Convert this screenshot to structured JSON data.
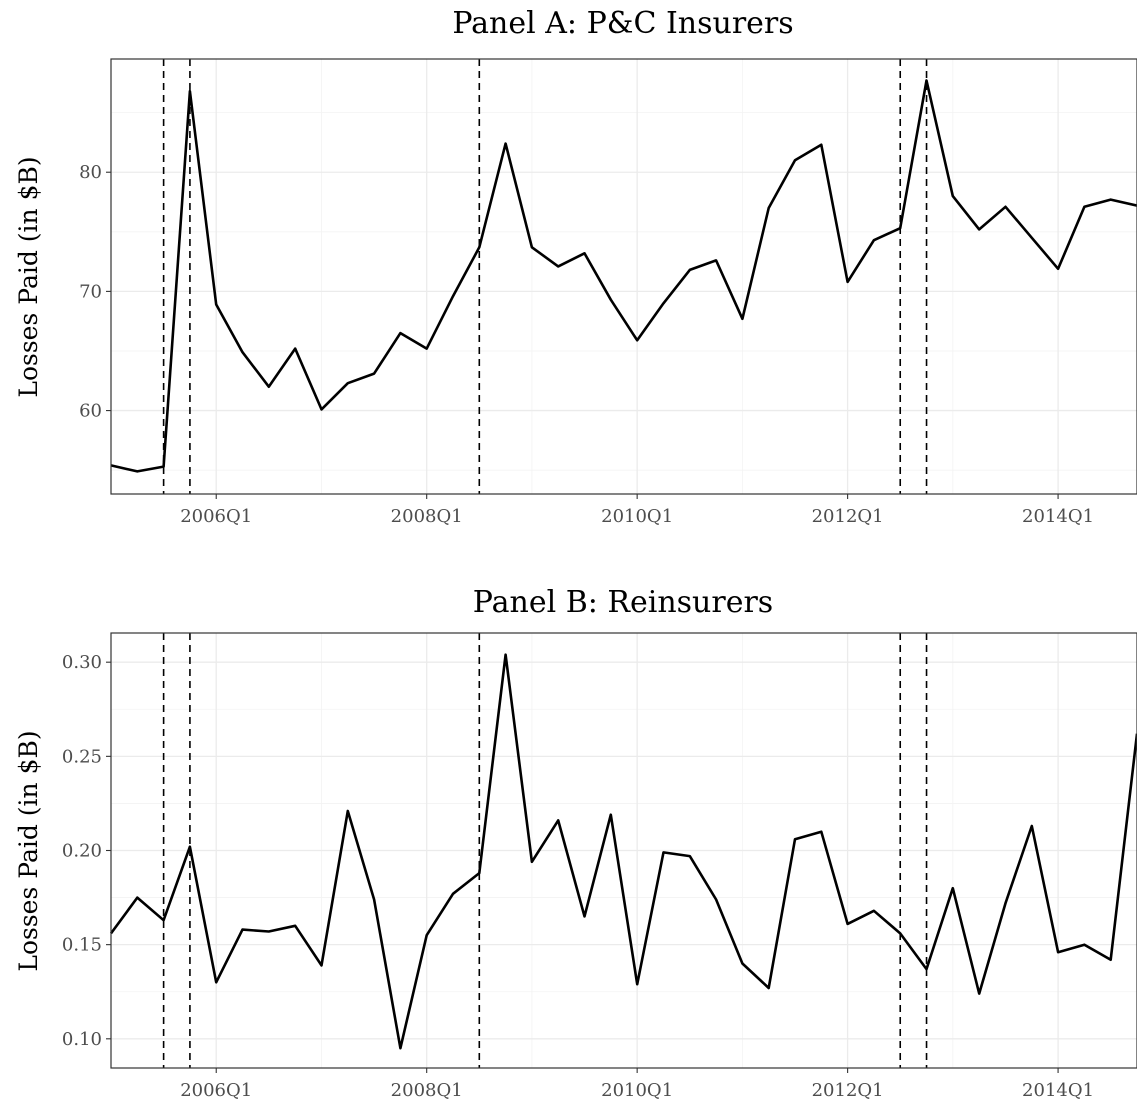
{
  "chart_data": [
    {
      "type": "line",
      "title": "Panel A: P&C Insurers",
      "xlabel": "",
      "ylabel": "Losses Paid (in $B)",
      "x_ticks": [
        "2006Q1",
        "2008Q1",
        "2010Q1",
        "2012Q1",
        "2014Q1"
      ],
      "y_ticks": [
        "60",
        "70",
        "80"
      ],
      "ylim": [
        53.0,
        89.5
      ],
      "xlim": [
        "2005Q1",
        "2014Q4"
      ],
      "grid": true,
      "event_lines": [
        "2005Q3",
        "2005Q4",
        "2008Q3",
        "2012Q3",
        "2012Q4"
      ],
      "x": [
        "2005Q1",
        "2005Q2",
        "2005Q3",
        "2005Q4",
        "2006Q1",
        "2006Q2",
        "2006Q3",
        "2006Q4",
        "2007Q1",
        "2007Q2",
        "2007Q3",
        "2007Q4",
        "2008Q1",
        "2008Q2",
        "2008Q3",
        "2008Q4",
        "2009Q1",
        "2009Q2",
        "2009Q3",
        "2009Q4",
        "2010Q1",
        "2010Q2",
        "2010Q3",
        "2010Q4",
        "2011Q1",
        "2011Q2",
        "2011Q3",
        "2011Q4",
        "2012Q1",
        "2012Q2",
        "2012Q3",
        "2012Q4",
        "2013Q1",
        "2013Q2",
        "2013Q3",
        "2013Q4",
        "2014Q1",
        "2014Q2",
        "2014Q3",
        "2014Q4"
      ],
      "values": [
        55.4,
        54.9,
        55.3,
        86.8,
        68.9,
        64.9,
        62.0,
        65.2,
        60.1,
        62.3,
        63.1,
        66.5,
        65.2,
        69.6,
        73.7,
        82.4,
        73.7,
        72.1,
        73.2,
        69.3,
        65.9,
        69.0,
        71.8,
        72.6,
        67.7,
        77.0,
        81.0,
        82.3,
        70.8,
        74.3,
        75.3,
        87.7,
        78.0,
        75.2,
        77.1,
        74.5,
        71.9,
        77.1,
        77.7,
        77.2
      ]
    },
    {
      "type": "line",
      "title": "Panel B: Reinsurers",
      "xlabel": "",
      "ylabel": "Losses Paid (in $B)",
      "x_ticks": [
        "2006Q1",
        "2008Q1",
        "2010Q1",
        "2012Q1",
        "2014Q1"
      ],
      "y_ticks": [
        "0.10",
        "0.15",
        "0.20",
        "0.25",
        "0.30"
      ],
      "ylim": [
        0.0845,
        0.3155
      ],
      "xlim": [
        "2005Q1",
        "2014Q4"
      ],
      "grid": true,
      "event_lines": [
        "2005Q3",
        "2005Q4",
        "2008Q3",
        "2012Q3",
        "2012Q4"
      ],
      "x": [
        "2005Q1",
        "2005Q2",
        "2005Q3",
        "2005Q4",
        "2006Q1",
        "2006Q2",
        "2006Q3",
        "2006Q4",
        "2007Q1",
        "2007Q2",
        "2007Q3",
        "2007Q4",
        "2008Q1",
        "2008Q2",
        "2008Q3",
        "2008Q4",
        "2009Q1",
        "2009Q2",
        "2009Q3",
        "2009Q4",
        "2010Q1",
        "2010Q2",
        "2010Q3",
        "2010Q4",
        "2011Q1",
        "2011Q2",
        "2011Q3",
        "2011Q4",
        "2012Q1",
        "2012Q2",
        "2012Q3",
        "2012Q4",
        "2013Q1",
        "2013Q2",
        "2013Q3",
        "2013Q4",
        "2014Q1",
        "2014Q2",
        "2014Q3",
        "2014Q4"
      ],
      "values": [
        0.156,
        0.175,
        0.163,
        0.202,
        0.13,
        0.158,
        0.157,
        0.16,
        0.139,
        0.221,
        0.174,
        0.095,
        0.155,
        0.177,
        0.188,
        0.304,
        0.194,
        0.216,
        0.165,
        0.219,
        0.129,
        0.199,
        0.197,
        0.174,
        0.14,
        0.127,
        0.206,
        0.21,
        0.161,
        0.168,
        0.156,
        0.137,
        0.18,
        0.124,
        0.172,
        0.213,
        0.146,
        0.15,
        0.142,
        0.262
      ]
    }
  ]
}
